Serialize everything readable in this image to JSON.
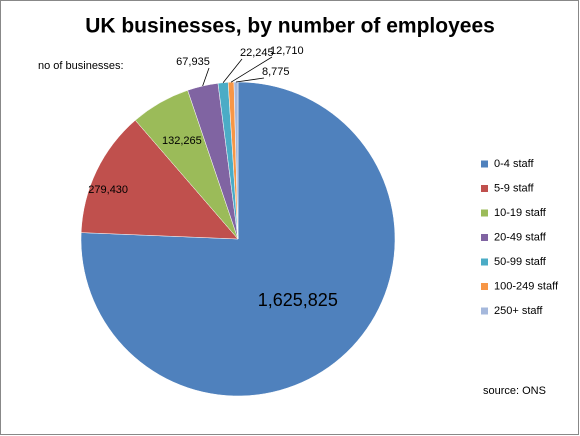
{
  "chart_data": {
    "type": "pie",
    "title": "UK businesses, by number of employees",
    "categories": [
      "0-4 staff",
      "5-9 staff",
      "10-19 staff",
      "20-49 staff",
      "50-99 staff",
      "100-249 staff",
      "250+ staff"
    ],
    "values": [
      1625825,
      279430,
      132265,
      67935,
      22245,
      12710,
      8775
    ],
    "value_labels": [
      "1,625,825",
      "279,430",
      "132,265",
      "67,935",
      "22,245",
      "12,710",
      "8,775"
    ],
    "colors": [
      "#4f81bd",
      "#c0504d",
      "#9bbb59",
      "#8064a2",
      "#4bacc6",
      "#f79646",
      "#a5b8dc"
    ],
    "annotations": [
      "no of businesses:",
      "source: ONS"
    ],
    "legend": "right"
  }
}
